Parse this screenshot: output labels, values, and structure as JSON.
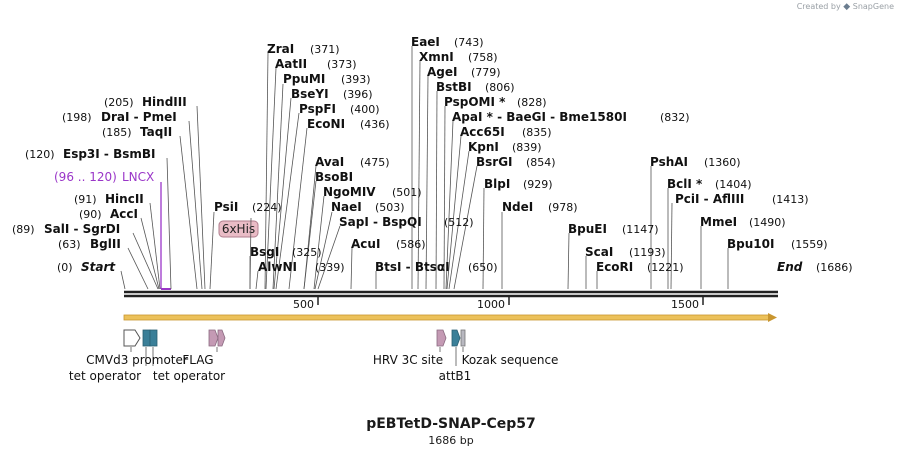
{
  "credit": {
    "prefix": "Created by",
    "brand": "SnapGene"
  },
  "plasmid": {
    "name": "pEBTetD-SNAP-Cep57",
    "length_label": "1686 bp",
    "length": 1686
  },
  "colors": {
    "backbone": "#222222",
    "arrow": "#ecc15a",
    "feature_pink": "#c49ab4",
    "feature_teal": "#3a7f98",
    "feature_gray": "#b8b8c0",
    "lncx": "#9a36c8",
    "his_fill": "#e9bcc6"
  },
  "ticks": [
    {
      "label": "500",
      "pos": 500
    },
    {
      "label": "1000",
      "pos": 1000
    },
    {
      "label": "1500",
      "pos": 1500
    }
  ],
  "enzymes": [
    {
      "name": "ZraI",
      "pos": "(371)",
      "bp": 371
    },
    {
      "name": "AatII",
      "pos": "(373)",
      "bp": 373
    },
    {
      "name": "PpuMI",
      "pos": "(393)",
      "bp": 393
    },
    {
      "name": "BseYI",
      "pos": "(396)",
      "bp": 396
    },
    {
      "name": "PspFI",
      "pos": "(400)",
      "bp": 400
    },
    {
      "name": "EcoNI",
      "pos": "(436)",
      "bp": 436
    },
    {
      "name": "AvaI",
      "pos": "(475)",
      "bp": 475
    },
    {
      "name": "BsoBI",
      "pos": "",
      "bp": 475
    },
    {
      "name": "NgoMIV",
      "pos": "(501)",
      "bp": 501
    },
    {
      "name": "NaeI",
      "pos": "(503)",
      "bp": 503
    },
    {
      "name": "SapI  - BspQI",
      "pos": "(512)",
      "bp": 512
    },
    {
      "name": "AcuI",
      "pos": "(586)",
      "bp": 586
    },
    {
      "name": "BtsI  - BtsαI",
      "pos": "(650)",
      "bp": 650
    },
    {
      "name": "EaeI",
      "pos": "(743)",
      "bp": 743
    },
    {
      "name": "XmnI",
      "pos": "(758)",
      "bp": 758
    },
    {
      "name": "AgeI",
      "pos": "(779)",
      "bp": 779
    },
    {
      "name": "BstBI",
      "pos": "(806)",
      "bp": 806
    },
    {
      "name": "PspOMI *",
      "pos": "(828)",
      "bp": 828
    },
    {
      "name": "ApaI *  - BaeGI  - Bme1580I",
      "pos": "(832)",
      "bp": 832
    },
    {
      "name": "Acc65I",
      "pos": "(835)",
      "bp": 835
    },
    {
      "name": "KpnI",
      "pos": "(839)",
      "bp": 839
    },
    {
      "name": "BsrGI",
      "pos": "(854)",
      "bp": 854
    },
    {
      "name": "BlpI",
      "pos": "(929)",
      "bp": 929
    },
    {
      "name": "NdeI",
      "pos": "(978)",
      "bp": 978
    },
    {
      "name": "BpuEI",
      "pos": "(1147)",
      "bp": 1147
    },
    {
      "name": "ScaI",
      "pos": "(1193)",
      "bp": 1193
    },
    {
      "name": "EcoRI",
      "pos": "(1221)",
      "bp": 1221
    },
    {
      "name": "PshAI",
      "pos": "(1360)",
      "bp": 1360
    },
    {
      "name": "BclI *",
      "pos": "(1404)",
      "bp": 1404
    },
    {
      "name": "PciI  - AflIII",
      "pos": "(1413)",
      "bp": 1413
    },
    {
      "name": "MmeI",
      "pos": "(1490)",
      "bp": 1490
    },
    {
      "name": "Bpu10I",
      "pos": "(1559)",
      "bp": 1559
    },
    {
      "name": "HindIII",
      "pos": "(205)",
      "bp": 205
    },
    {
      "name": "DraI  - PmeI",
      "pos": "(198)",
      "bp": 198
    },
    {
      "name": "TaqII",
      "pos": "(185)",
      "bp": 185
    },
    {
      "name": "Esp3I  - BsmBI",
      "pos": "(120)",
      "bp": 120
    },
    {
      "name": "HincII",
      "pos": "(91)",
      "bp": 91
    },
    {
      "name": "AccI",
      "pos": "(90)",
      "bp": 90
    },
    {
      "name": "SalI  - SgrDI",
      "pos": "(89)",
      "bp": 89
    },
    {
      "name": "BglII",
      "pos": "(63)",
      "bp": 63
    },
    {
      "name": "Start",
      "pos": "(0)",
      "bp": 0
    },
    {
      "name": "PsiI",
      "pos": "(224)",
      "bp": 224
    },
    {
      "name": "BsgI",
      "pos": "(325)",
      "bp": 325
    },
    {
      "name": "AlwNI",
      "pos": "(339)",
      "bp": 339
    },
    {
      "name": "End",
      "pos": "(1686)",
      "bp": 1686
    }
  ],
  "lncx": {
    "range": "(96 .. 120)",
    "name": "LNCX",
    "start": 96,
    "end": 120
  },
  "his_tag": {
    "label": "6xHis"
  },
  "features": [
    {
      "label": "CMVd3 promoter"
    },
    {
      "label": "tet operator"
    },
    {
      "label": "tet operator"
    },
    {
      "label": "FLAG"
    },
    {
      "label": "HRV 3C site"
    },
    {
      "label": "attB1"
    },
    {
      "label": "Kozak sequence"
    }
  ]
}
